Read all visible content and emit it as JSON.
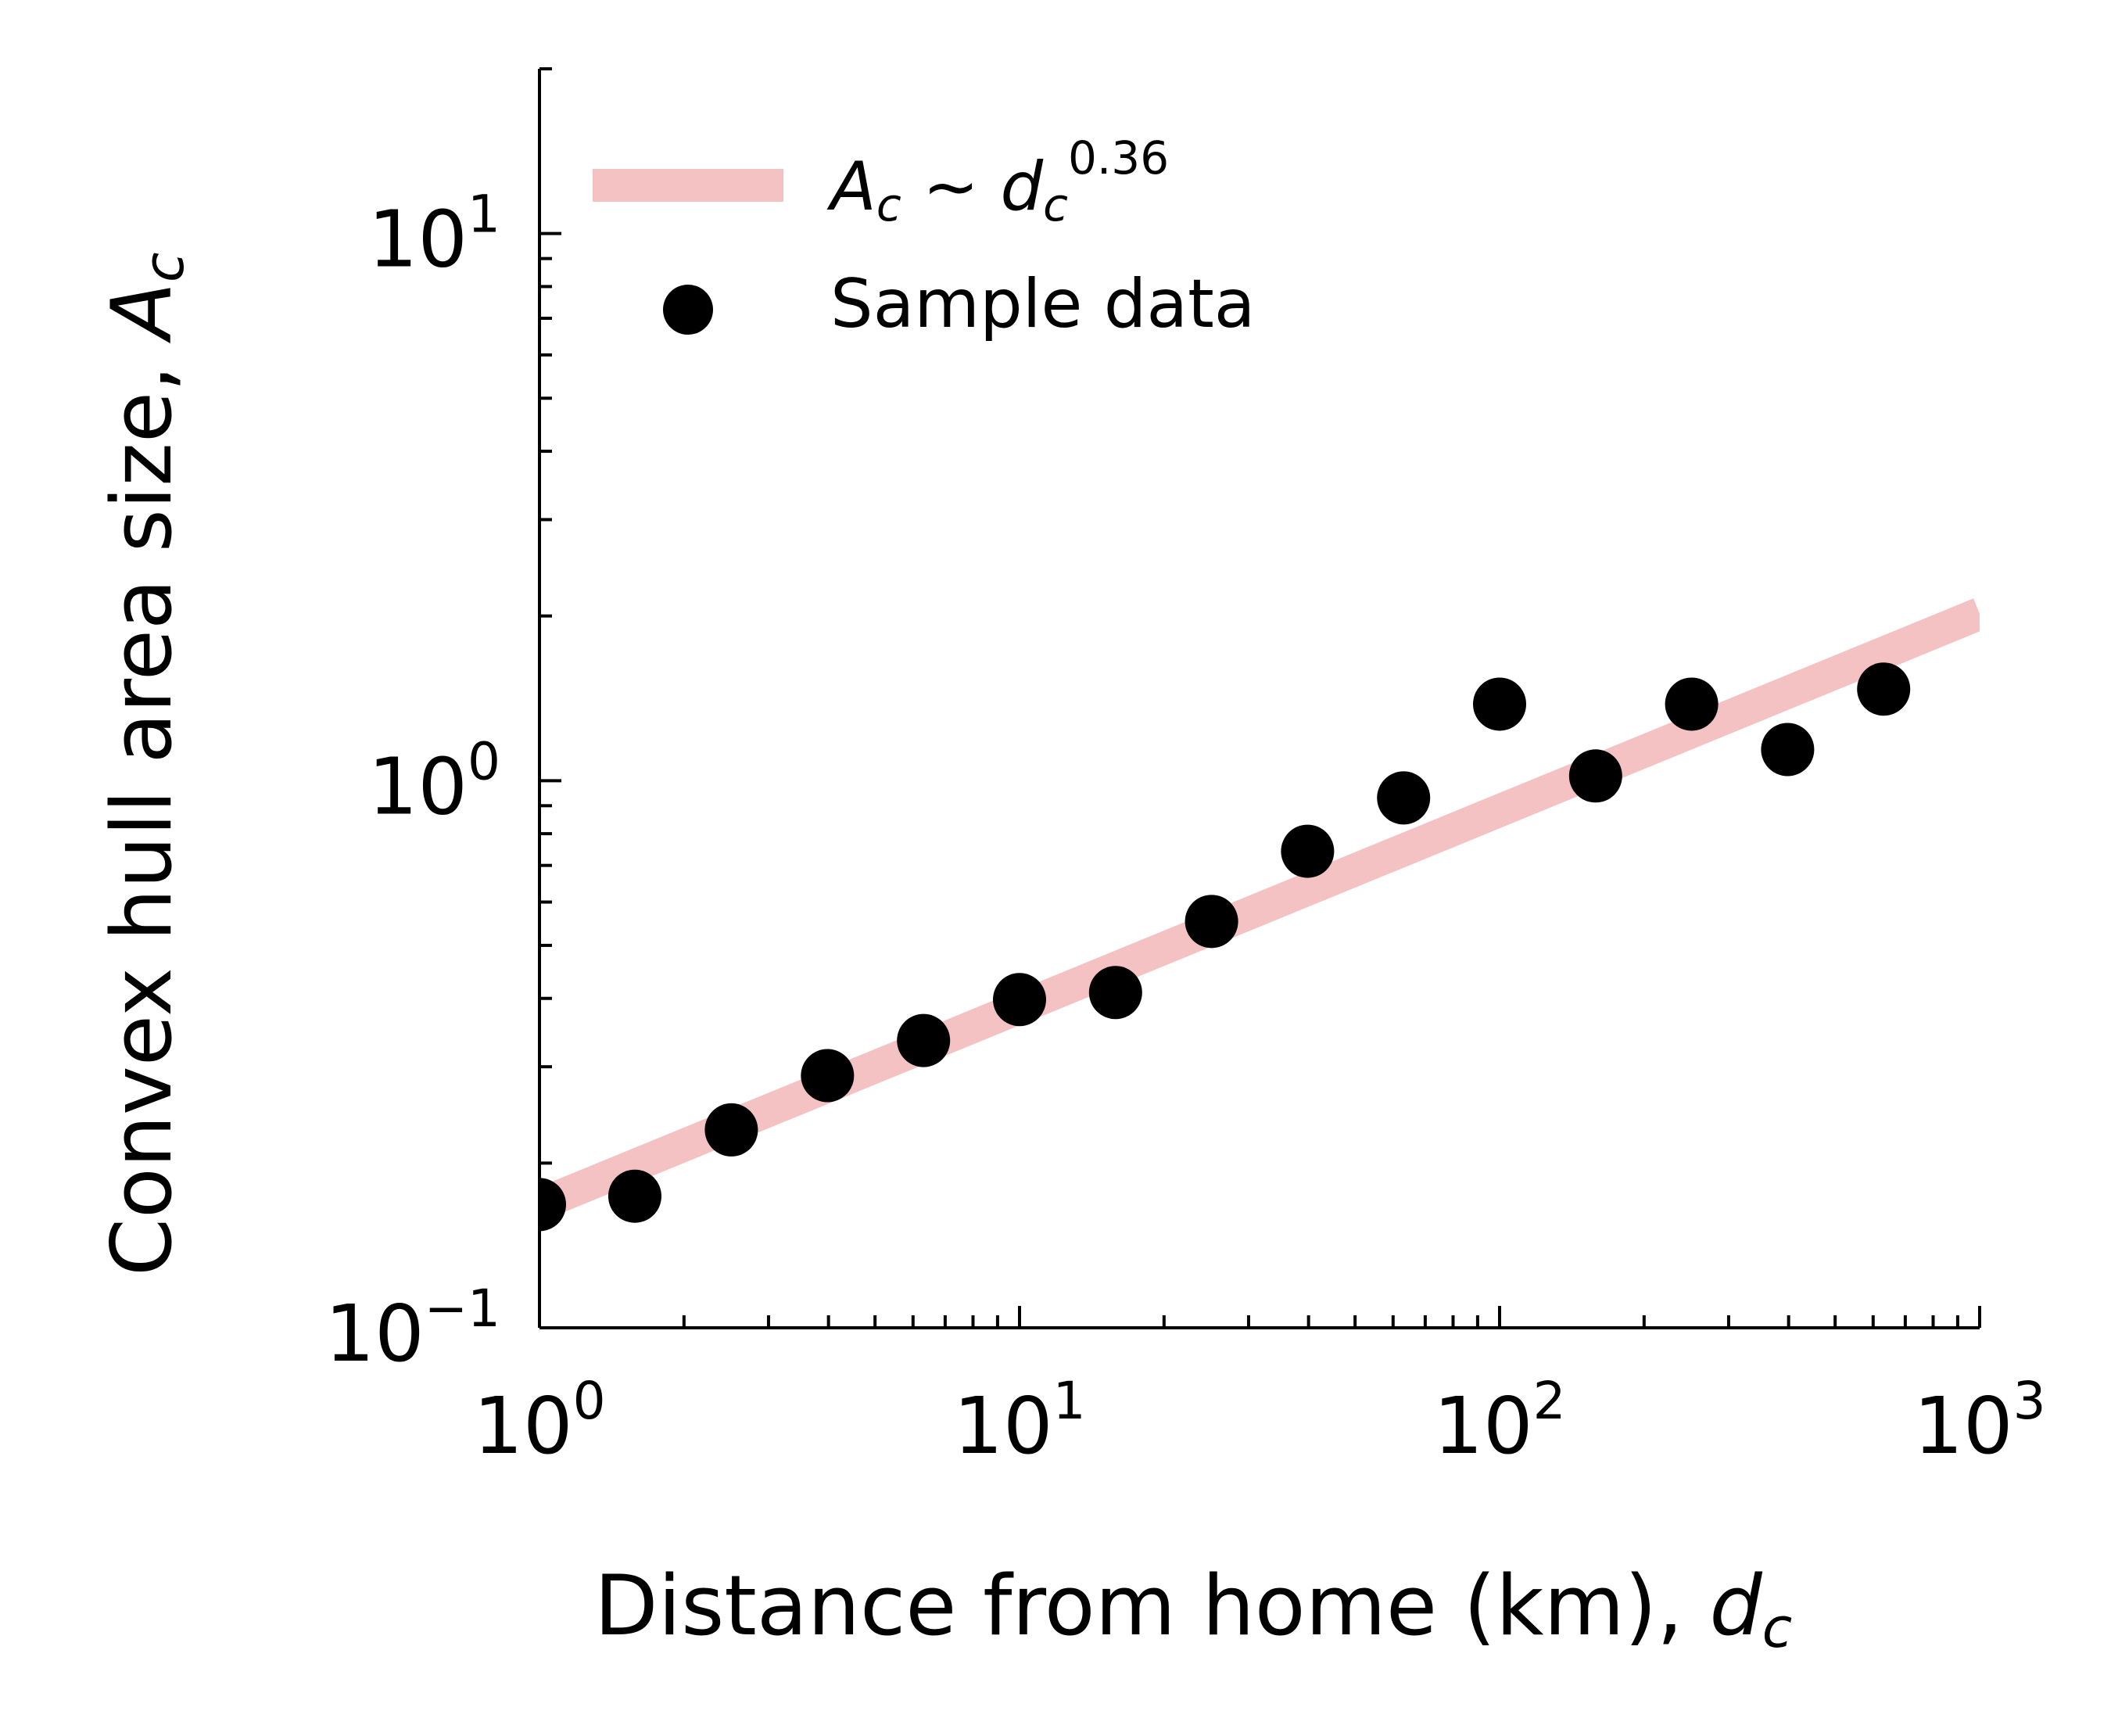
{
  "chart_data": {
    "type": "scatter",
    "xlabel": "Distance from home (km), ",
    "xlabel_var": "d",
    "xlabel_sub": "c",
    "ylabel": "Convex hull area size, ",
    "ylabel_var": "A",
    "ylabel_sub": "c",
    "xscale": "log",
    "yscale": "log",
    "xlim": [
      1,
      1000
    ],
    "ylim": [
      0.1,
      20
    ],
    "x_ticks": [
      {
        "base": "10",
        "exp": "0",
        "value": 1
      },
      {
        "base": "10",
        "exp": "1",
        "value": 10
      },
      {
        "base": "10",
        "exp": "2",
        "value": 100
      },
      {
        "base": "10",
        "exp": "3",
        "value": 1000
      }
    ],
    "y_ticks": [
      {
        "base": "10",
        "exp": "−1",
        "value": 0.1
      },
      {
        "base": "10",
        "exp": "0",
        "value": 1
      },
      {
        "base": "10",
        "exp": "1",
        "value": 10
      }
    ],
    "grid": false,
    "legend_position": "top-left",
    "series": [
      {
        "name": "Sample data",
        "kind": "scatter",
        "color": "#000000",
        "x": [
          1.0,
          1.58,
          2.51,
          3.98,
          6.31,
          10.0,
          15.85,
          25.12,
          39.81,
          63.1,
          100.0,
          158.5,
          251.2,
          398.1,
          631.0
        ],
        "y": [
          0.168,
          0.174,
          0.23,
          0.289,
          0.335,
          0.398,
          0.41,
          0.553,
          0.743,
          0.93,
          1.38,
          1.02,
          1.38,
          1.14,
          1.47
        ]
      },
      {
        "name": "A_c ~ d_c^0.36",
        "kind": "line",
        "color": "#f4c2c2",
        "exponent": 0.36,
        "coefficient": 0.168
      }
    ],
    "legend": {
      "fit_label": {
        "var1": "A",
        "sub1": "c",
        "sep": " ~ ",
        "var2": "d",
        "sub2": "c",
        "exp": "0.36"
      },
      "data_label": "Sample data"
    }
  }
}
